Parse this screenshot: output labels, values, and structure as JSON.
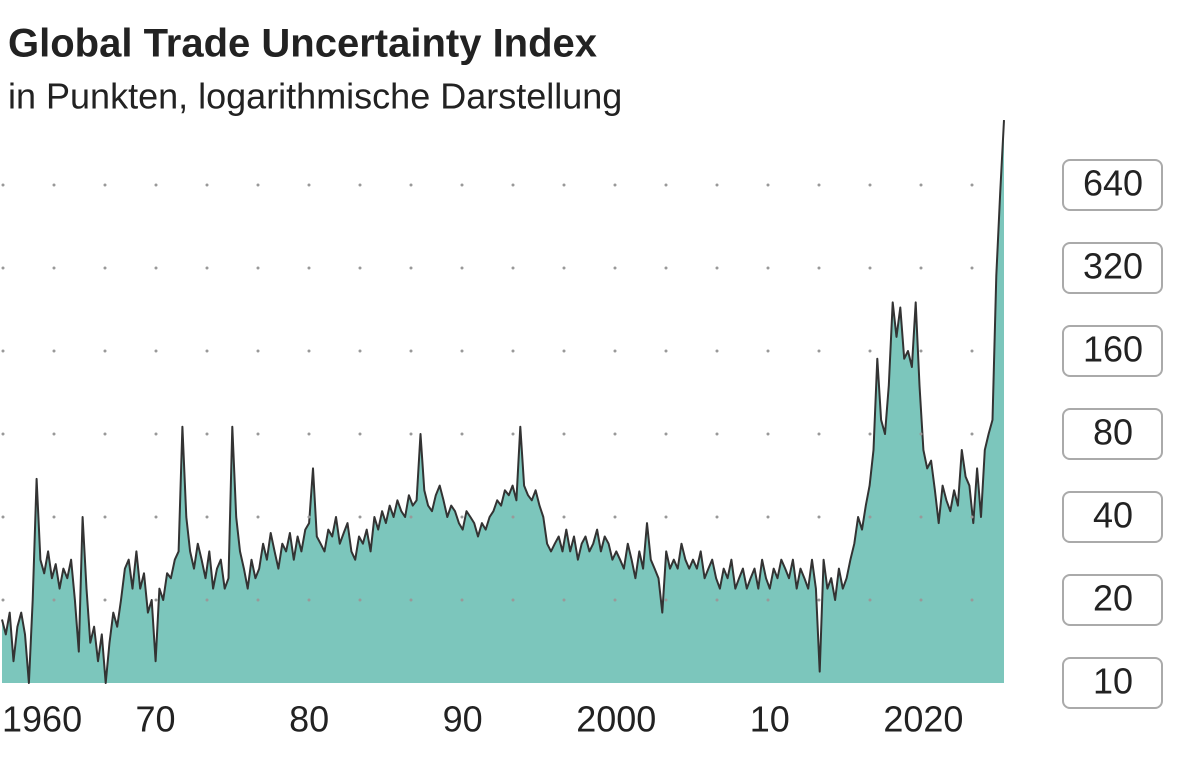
{
  "chart_data": {
    "type": "area",
    "title": "Global Trade Uncertainty Index",
    "subtitle": "in Punkten, logarithmische Darstellung",
    "color": "#7cc6bc",
    "line_color": "#333333",
    "log_y": true,
    "grid": true,
    "xlim": [
      1960,
      2025.25
    ],
    "xticks": [
      1960,
      {
        "value": 1970,
        "label": "70"
      },
      {
        "value": 1980,
        "label": "80"
      },
      {
        "value": 1990,
        "label": "90"
      },
      2000,
      {
        "value": 2010,
        "label": "10"
      },
      2020
    ],
    "ylim": [
      10,
      1280
    ],
    "yticks": [
      10,
      20,
      40,
      80,
      160,
      320,
      640
    ],
    "x": [
      1960,
      1960.25,
      1960.5,
      1960.75,
      1961,
      1961.25,
      1961.5,
      1961.75,
      1962,
      1962.25,
      1962.5,
      1962.75,
      1963,
      1963.25,
      1963.5,
      1963.75,
      1964,
      1964.25,
      1964.5,
      1964.75,
      1965,
      1965.25,
      1965.5,
      1965.75,
      1966,
      1966.25,
      1966.5,
      1966.75,
      1967,
      1967.25,
      1967.5,
      1967.75,
      1968,
      1968.25,
      1968.5,
      1968.75,
      1969,
      1969.25,
      1969.5,
      1969.75,
      1970,
      1970.25,
      1970.5,
      1970.75,
      1971,
      1971.25,
      1971.5,
      1971.75,
      1972,
      1972.25,
      1972.5,
      1972.75,
      1973,
      1973.25,
      1973.5,
      1973.75,
      1974,
      1974.25,
      1974.5,
      1974.75,
      1975,
      1975.25,
      1975.5,
      1975.75,
      1976,
      1976.25,
      1976.5,
      1976.75,
      1977,
      1977.25,
      1977.5,
      1977.75,
      1978,
      1978.25,
      1978.5,
      1978.75,
      1979,
      1979.25,
      1979.5,
      1979.75,
      1980,
      1980.25,
      1980.5,
      1980.75,
      1981,
      1981.25,
      1981.5,
      1981.75,
      1982,
      1982.25,
      1982.5,
      1982.75,
      1983,
      1983.25,
      1983.5,
      1983.75,
      1984,
      1984.25,
      1984.5,
      1984.75,
      1985,
      1985.25,
      1985.5,
      1985.75,
      1986,
      1986.25,
      1986.5,
      1986.75,
      1987,
      1987.25,
      1987.5,
      1987.75,
      1988,
      1988.25,
      1988.5,
      1988.75,
      1989,
      1989.25,
      1989.5,
      1989.75,
      1990,
      1990.25,
      1990.5,
      1990.75,
      1991,
      1991.25,
      1991.5,
      1991.75,
      1992,
      1992.25,
      1992.5,
      1992.75,
      1993,
      1993.25,
      1993.5,
      1993.75,
      1994,
      1994.25,
      1994.5,
      1994.75,
      1995,
      1995.25,
      1995.5,
      1995.75,
      1996,
      1996.25,
      1996.5,
      1996.75,
      1997,
      1997.25,
      1997.5,
      1997.75,
      1998,
      1998.25,
      1998.5,
      1998.75,
      1999,
      1999.25,
      1999.5,
      1999.75,
      2000,
      2000.25,
      2000.5,
      2000.75,
      2001,
      2001.25,
      2001.5,
      2001.75,
      2002,
      2002.25,
      2002.5,
      2002.75,
      2003,
      2003.25,
      2003.5,
      2003.75,
      2004,
      2004.25,
      2004.5,
      2004.75,
      2005,
      2005.25,
      2005.5,
      2005.75,
      2006,
      2006.25,
      2006.5,
      2006.75,
      2007,
      2007.25,
      2007.5,
      2007.75,
      2008,
      2008.25,
      2008.5,
      2008.75,
      2009,
      2009.25,
      2009.5,
      2009.75,
      2010,
      2010.25,
      2010.5,
      2010.75,
      2011,
      2011.25,
      2011.5,
      2011.75,
      2012,
      2012.25,
      2012.5,
      2012.75,
      2013,
      2013.25,
      2013.5,
      2013.75,
      2014,
      2014.25,
      2014.5,
      2014.75,
      2015,
      2015.25,
      2015.5,
      2015.75,
      2016,
      2016.25,
      2016.5,
      2016.75,
      2017,
      2017.25,
      2017.5,
      2017.75,
      2018,
      2018.25,
      2018.5,
      2018.75,
      2019,
      2019.25,
      2019.5,
      2019.75,
      2020,
      2020.25,
      2020.5,
      2020.75,
      2021,
      2021.25,
      2021.5,
      2021.75,
      2022,
      2022.25,
      2022.5,
      2022.75,
      2023,
      2023.25,
      2023.5,
      2023.75,
      2024,
      2024.25,
      2024.5,
      2024.75,
      2025,
      2025.25
    ],
    "values": [
      17,
      15,
      18,
      12,
      16,
      18,
      15,
      10,
      20,
      55,
      28,
      25,
      30,
      24,
      27,
      22,
      26,
      24,
      28,
      20,
      13,
      40,
      22,
      14,
      16,
      12,
      15,
      10,
      14,
      18,
      16,
      20,
      26,
      28,
      22,
      30,
      22,
      25,
      18,
      20,
      12,
      22,
      20,
      25,
      24,
      28,
      30,
      85,
      40,
      30,
      26,
      32,
      28,
      24,
      30,
      22,
      26,
      28,
      22,
      24,
      85,
      40,
      30,
      26,
      22,
      28,
      24,
      26,
      32,
      28,
      35,
      30,
      26,
      32,
      30,
      35,
      28,
      34,
      30,
      36,
      38,
      60,
      34,
      32,
      30,
      36,
      34,
      40,
      32,
      35,
      38,
      30,
      28,
      34,
      32,
      36,
      30,
      40,
      36,
      42,
      38,
      44,
      40,
      46,
      42,
      40,
      48,
      44,
      46,
      80,
      50,
      44,
      42,
      48,
      52,
      46,
      40,
      44,
      42,
      38,
      36,
      42,
      40,
      38,
      34,
      38,
      36,
      40,
      42,
      46,
      44,
      50,
      48,
      52,
      46,
      85,
      52,
      48,
      46,
      50,
      44,
      40,
      32,
      30,
      32,
      34,
      30,
      36,
      30,
      34,
      28,
      32,
      34,
      30,
      32,
      36,
      30,
      34,
      32,
      28,
      30,
      28,
      26,
      32,
      28,
      24,
      30,
      26,
      38,
      28,
      26,
      24,
      18,
      30,
      26,
      28,
      26,
      32,
      28,
      26,
      28,
      26,
      30,
      24,
      26,
      28,
      24,
      22,
      26,
      24,
      28,
      22,
      24,
      26,
      22,
      24,
      26,
      22,
      28,
      24,
      22,
      26,
      24,
      28,
      26,
      24,
      28,
      22,
      26,
      24,
      22,
      28,
      22,
      11,
      28,
      22,
      24,
      20,
      26,
      22,
      24,
      28,
      32,
      40,
      36,
      44,
      52,
      70,
      150,
      90,
      80,
      120,
      240,
      180,
      230,
      150,
      160,
      140,
      240,
      120,
      70,
      60,
      64,
      50,
      38,
      52,
      46,
      42,
      50,
      44,
      70,
      56,
      52,
      38,
      60,
      40,
      70,
      80,
      90,
      300,
      600,
      1100
    ]
  }
}
